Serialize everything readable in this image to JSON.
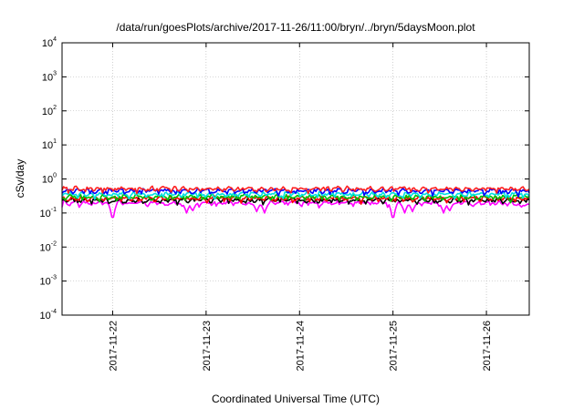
{
  "chart_data": {
    "type": "line",
    "title": "/data/run/goesPlots/archive/2017-11-26/11:00/bryn/../bryn/5daysMoon.plot",
    "xlabel": "Coordinated Universal Time (UTC)",
    "ylabel": "cSv/day",
    "yscale": "log",
    "ylim": [
      0.0001,
      10000
    ],
    "y_ticks": [
      {
        "base": "10",
        "exp": "4",
        "value": 10000
      },
      {
        "base": "10",
        "exp": "3",
        "value": 1000
      },
      {
        "base": "10",
        "exp": "2",
        "value": 100
      },
      {
        "base": "10",
        "exp": "1",
        "value": 10
      },
      {
        "base": "10",
        "exp": "0",
        "value": 1
      },
      {
        "base": "10",
        "exp": "-1",
        "value": 0.1
      },
      {
        "base": "10",
        "exp": "-2",
        "value": 0.01
      },
      {
        "base": "10",
        "exp": "-3",
        "value": 0.001
      },
      {
        "base": "10",
        "exp": "-4",
        "value": 0.0001
      }
    ],
    "x_ticks": [
      "2017-11-22",
      "2017-11-23",
      "2017-11-24",
      "2017-11-25",
      "2017-11-26"
    ],
    "xlim": [
      "2017-11-21 11:00",
      "2017-11-26 11:00"
    ],
    "grid": true,
    "series": [
      {
        "color": "#ff00ff",
        "base": 0.2,
        "dips": [
          [
            "2017-11-22 00:00",
            0.05
          ],
          [
            "2017-11-22 19:00",
            0.1
          ],
          [
            "2017-11-22 20:30",
            0.11
          ],
          [
            "2017-11-23 13:00",
            0.11
          ],
          [
            "2017-11-23 15:00",
            0.1
          ],
          [
            "2017-11-25 00:00",
            0.05
          ],
          [
            "2017-11-25 03:00",
            0.1
          ],
          [
            "2017-11-25 05:00",
            0.11
          ],
          [
            "2017-11-25 13:00",
            0.1
          ],
          [
            "2017-11-25 14:30",
            0.11
          ],
          [
            "2017-11-26 09:00",
            0.15
          ]
        ]
      },
      {
        "color": "#000000",
        "base": 0.24,
        "dips": []
      },
      {
        "color": "#ff0000",
        "base": 0.27,
        "dips": []
      },
      {
        "color": "#00c000",
        "base": 0.3,
        "dips": []
      },
      {
        "color": "#00e0e0",
        "base": 0.36,
        "dips": []
      },
      {
        "color": "#0000ff",
        "base": 0.45,
        "dips": []
      },
      {
        "color": "#ff2020",
        "base": 0.52,
        "dips": []
      }
    ]
  }
}
